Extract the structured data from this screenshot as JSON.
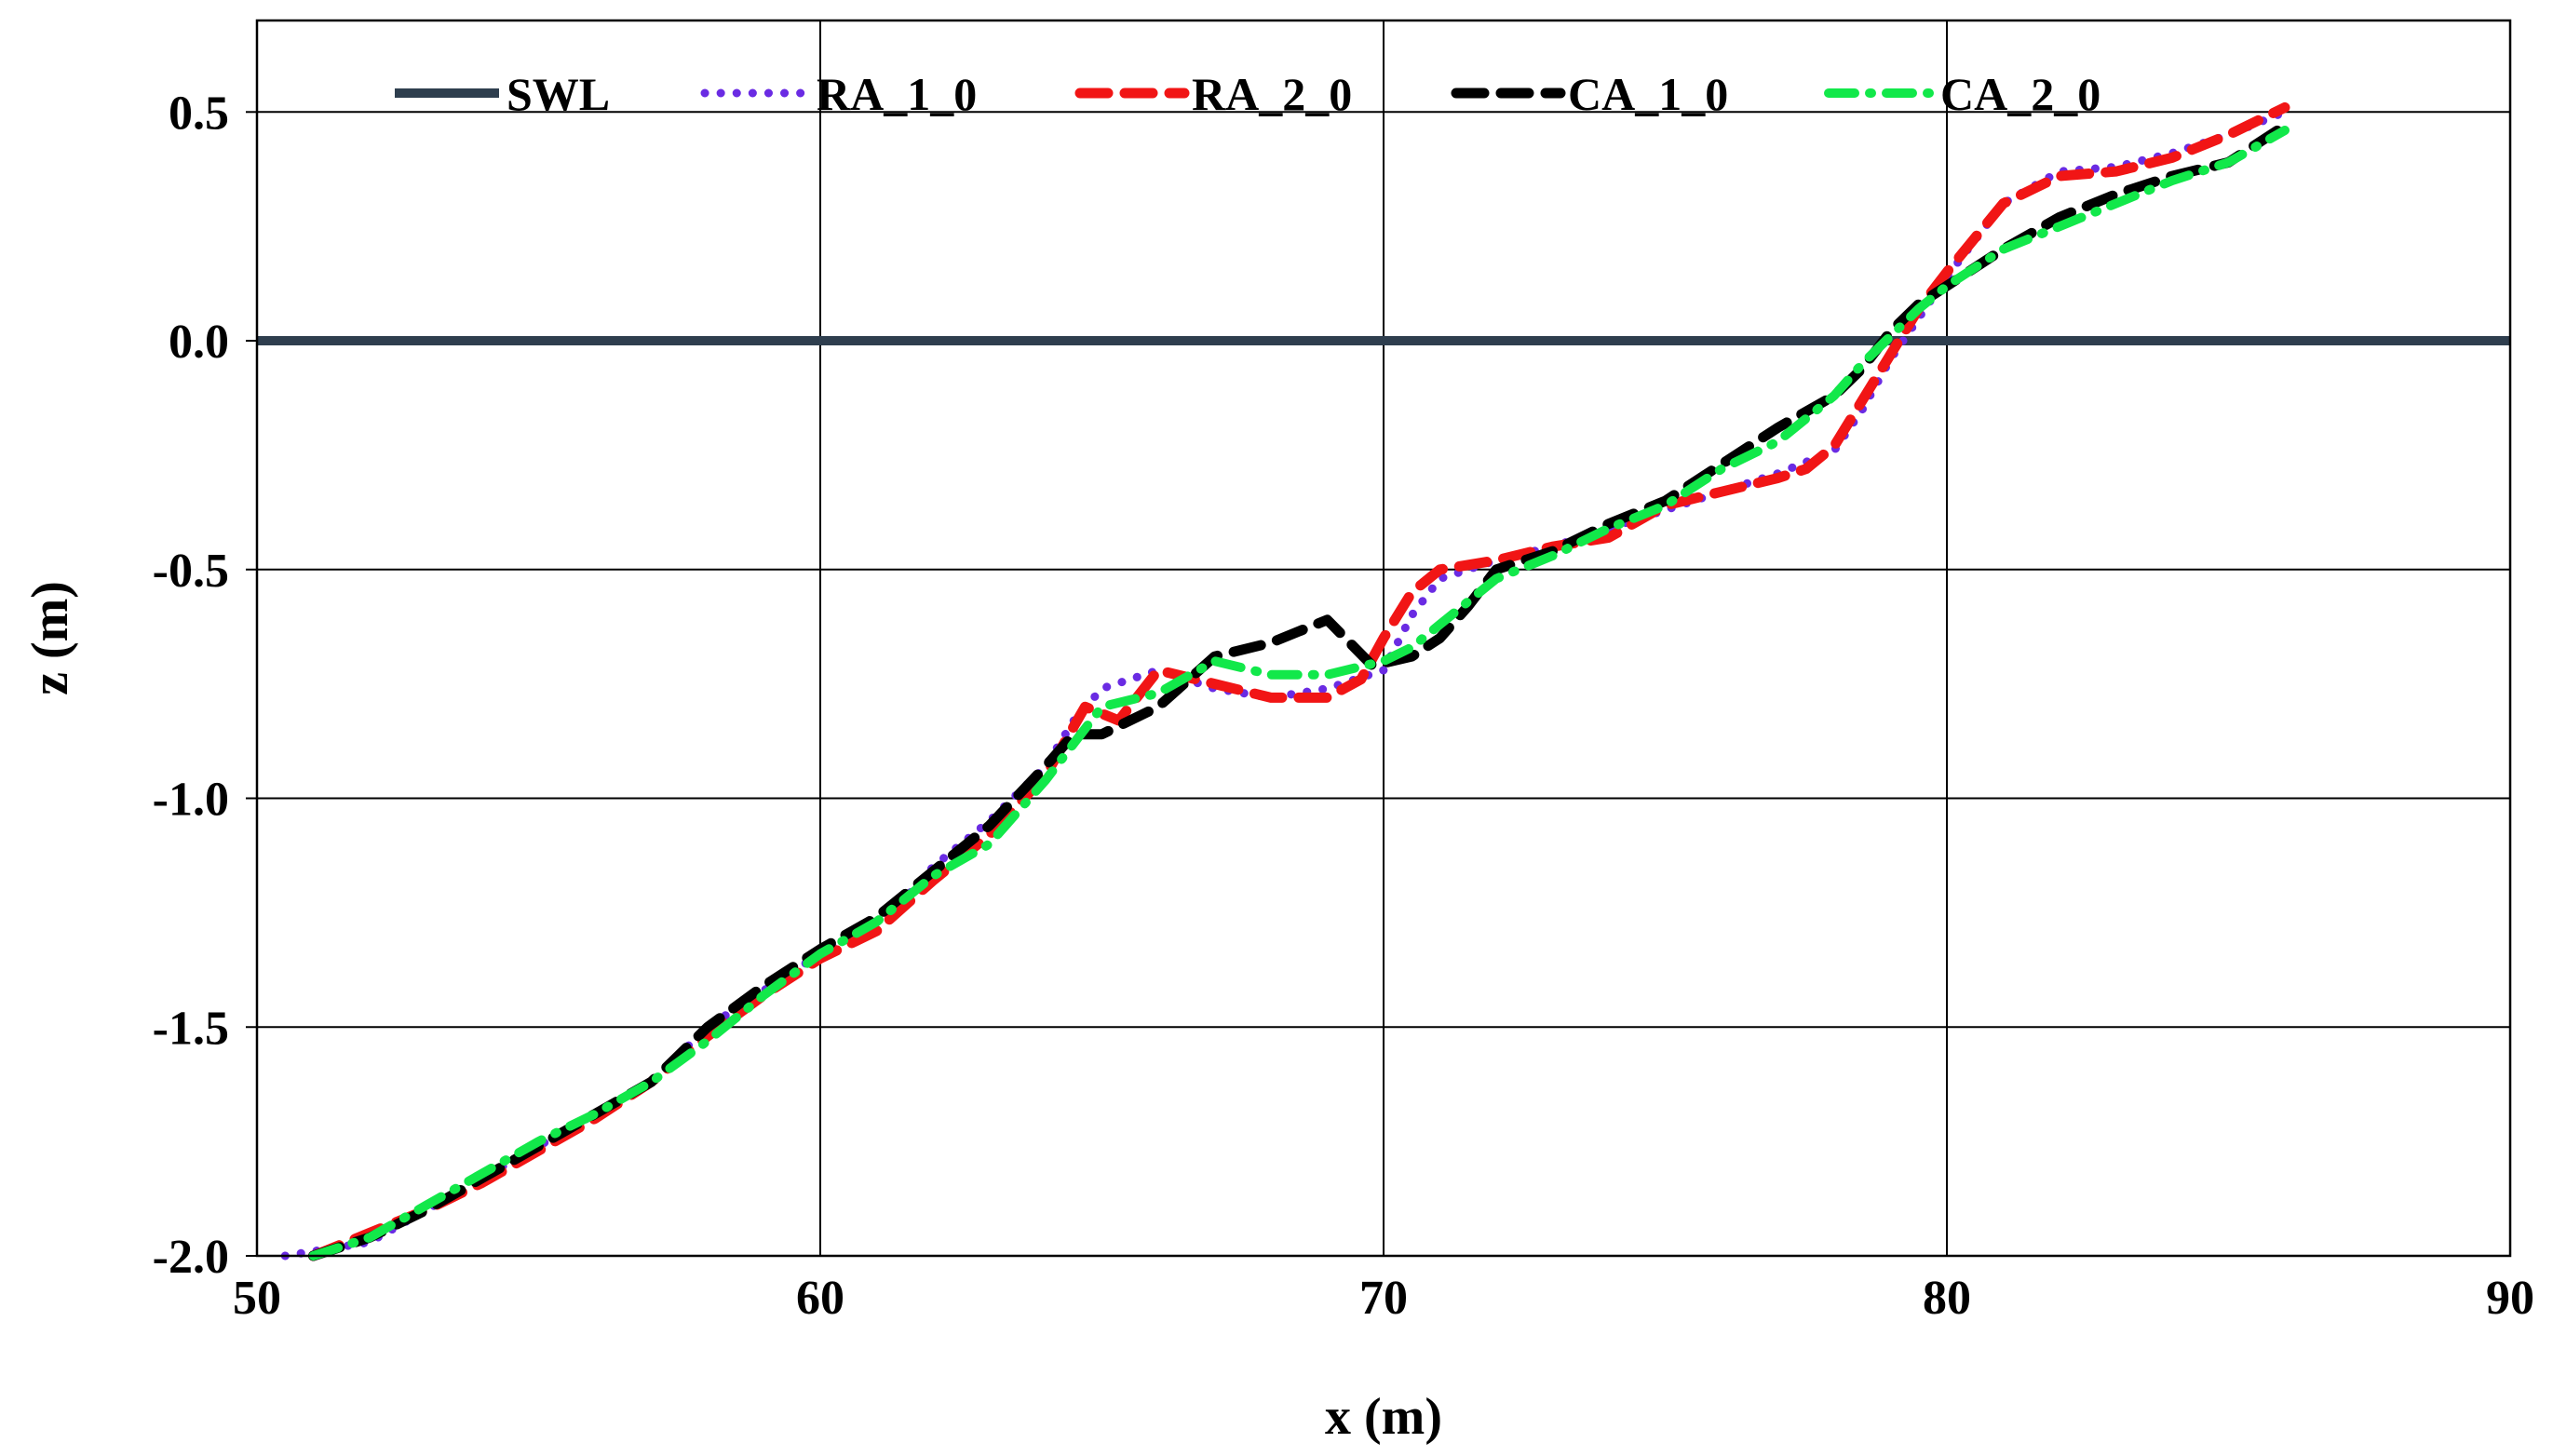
{
  "chart_data": {
    "type": "line",
    "xlabel": "x  (m)",
    "ylabel": "z  (m)",
    "xlim": [
      50,
      90
    ],
    "ylim": [
      -2.0,
      0.7
    ],
    "xticks": [
      "50",
      "60",
      "70",
      "80",
      "90"
    ],
    "yticks": [
      "0.5",
      "0.0",
      "-0.5",
      "-1.0",
      "-1.5",
      "-2.0"
    ],
    "grid": true,
    "legend_position": "top",
    "series": [
      {
        "name": "SWL",
        "color": "#2e3e4e",
        "style": "solid",
        "x": [
          50,
          90
        ],
        "y": [
          0.0,
          0.0
        ]
      },
      {
        "name": "RA_1_0",
        "color": "#6a2be3",
        "style": "dotted",
        "x": [
          50.5,
          52,
          53,
          54,
          55,
          56,
          57,
          58,
          59,
          60,
          61,
          61.5,
          62,
          63,
          64,
          64.5,
          65,
          66,
          67,
          68,
          69,
          70,
          70.5,
          71,
          72,
          73,
          74,
          75,
          76,
          77,
          78,
          78.5,
          79,
          79.5,
          80,
          81,
          82,
          83,
          84,
          85,
          86
        ],
        "y": [
          -2.0,
          -1.97,
          -1.9,
          -1.83,
          -1.76,
          -1.69,
          -1.62,
          -1.5,
          -1.42,
          -1.34,
          -1.27,
          -1.22,
          -1.15,
          -1.05,
          -0.93,
          -0.83,
          -0.76,
          -0.72,
          -0.76,
          -0.78,
          -0.76,
          -0.72,
          -0.6,
          -0.52,
          -0.48,
          -0.45,
          -0.41,
          -0.37,
          -0.33,
          -0.29,
          -0.24,
          -0.15,
          -0.04,
          0.05,
          0.14,
          0.3,
          0.37,
          0.38,
          0.41,
          0.45,
          0.5
        ]
      },
      {
        "name": "RA_2_0",
        "color": "#f11515",
        "style": "dashed",
        "x": [
          51,
          52,
          53,
          54,
          55,
          56,
          57,
          58,
          59,
          60,
          61,
          62,
          63,
          64,
          64.7,
          65.3,
          66,
          67,
          68,
          69,
          69.6,
          70,
          70.5,
          71,
          72,
          73,
          74,
          75,
          76,
          77,
          77.5,
          78,
          78.5,
          79,
          79.5,
          80,
          81,
          82,
          83,
          84,
          85,
          86
        ],
        "y": [
          -2.0,
          -1.95,
          -1.9,
          -1.84,
          -1.77,
          -1.7,
          -1.62,
          -1.52,
          -1.43,
          -1.35,
          -1.29,
          -1.18,
          -1.08,
          -0.95,
          -0.8,
          -0.83,
          -0.72,
          -0.75,
          -0.78,
          -0.78,
          -0.74,
          -0.65,
          -0.55,
          -0.5,
          -0.48,
          -0.45,
          -0.43,
          -0.36,
          -0.33,
          -0.3,
          -0.28,
          -0.23,
          -0.13,
          -0.03,
          0.07,
          0.15,
          0.3,
          0.36,
          0.37,
          0.4,
          0.45,
          0.51
        ]
      },
      {
        "name": "CA_1_0",
        "color": "#000000",
        "style": "dashed",
        "x": [
          51,
          52,
          53,
          54,
          55,
          56,
          57,
          58,
          59,
          60,
          61,
          62,
          63,
          64,
          64.5,
          65,
          66,
          67,
          68,
          69,
          69.8,
          70.5,
          71,
          71.5,
          72,
          73,
          74,
          75,
          76,
          77,
          78,
          78.5,
          79,
          79.5,
          80,
          81,
          82,
          83,
          84,
          85,
          86
        ],
        "y": [
          -2.0,
          -1.96,
          -1.9,
          -1.83,
          -1.76,
          -1.69,
          -1.62,
          -1.5,
          -1.41,
          -1.33,
          -1.26,
          -1.16,
          -1.06,
          -0.93,
          -0.86,
          -0.86,
          -0.8,
          -0.69,
          -0.66,
          -0.61,
          -0.71,
          -0.69,
          -0.65,
          -0.58,
          -0.5,
          -0.46,
          -0.4,
          -0.35,
          -0.27,
          -0.19,
          -0.12,
          -0.06,
          0.02,
          0.08,
          0.12,
          0.2,
          0.27,
          0.32,
          0.36,
          0.39,
          0.47
        ]
      },
      {
        "name": "CA_2_0",
        "color": "#12e84a",
        "style": "dashdot",
        "x": [
          51,
          52,
          53,
          54,
          55,
          56,
          57,
          58,
          59,
          60,
          61,
          62,
          63,
          64,
          65,
          66,
          67,
          68,
          69,
          70,
          70.5,
          71,
          72,
          73,
          74,
          75,
          76,
          77,
          78,
          78.5,
          79,
          79.5,
          80,
          81,
          82,
          83,
          84,
          85,
          86
        ],
        "y": [
          -2.0,
          -1.96,
          -1.89,
          -1.82,
          -1.75,
          -1.69,
          -1.62,
          -1.53,
          -1.43,
          -1.34,
          -1.27,
          -1.17,
          -1.1,
          -0.96,
          -0.8,
          -0.77,
          -0.7,
          -0.73,
          -0.73,
          -0.7,
          -0.67,
          -0.62,
          -0.52,
          -0.47,
          -0.41,
          -0.36,
          -0.28,
          -0.22,
          -0.12,
          -0.05,
          0.01,
          0.07,
          0.12,
          0.2,
          0.25,
          0.3,
          0.35,
          0.39,
          0.46
        ]
      }
    ]
  }
}
